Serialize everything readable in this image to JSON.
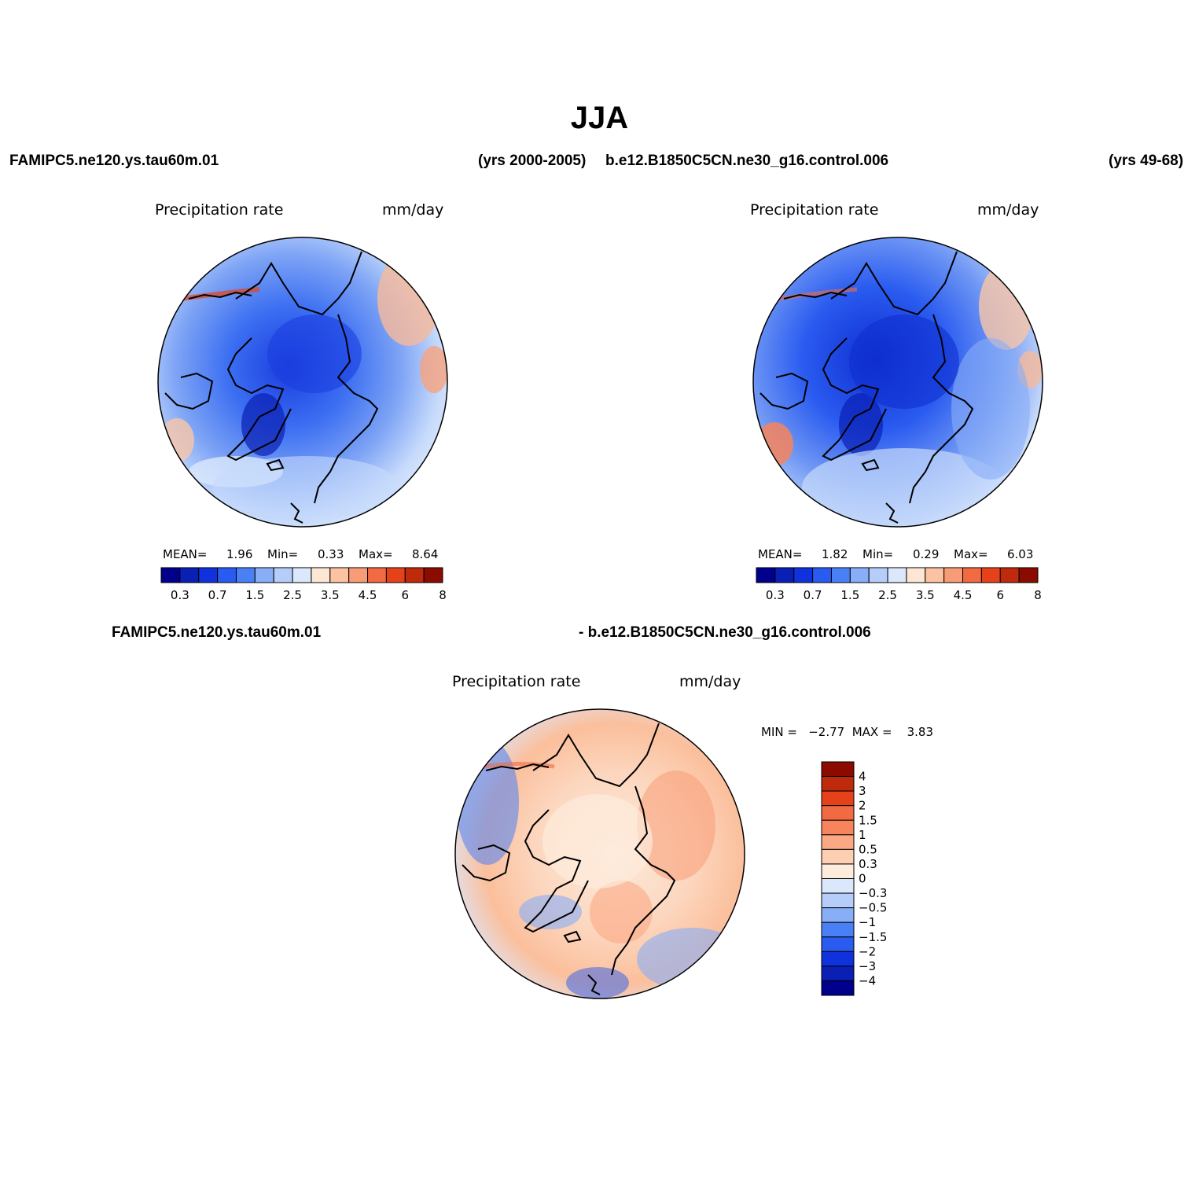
{
  "title": "JJA",
  "top_left_case": {
    "name": "FAMIPC5.ne120.ys.tau60m.01",
    "years": "(yrs 2000-2005)"
  },
  "top_right_case": {
    "name": "b.e12.B1850C5CN.ne30_g16.control.006",
    "years": "(yrs 49-68)"
  },
  "diff_case": {
    "left": "FAMIPC5.ne120.ys.tau60m.01",
    "right": "- b.e12.B1850C5CN.ne30_g16.control.006"
  },
  "panels": [
    {
      "variable": "Precipitation  rate",
      "units": "mm/day",
      "stats": {
        "mean_label": "MEAN=",
        "mean": "1.96",
        "min_label": "Min=",
        "min": "0.33",
        "max_label": "Max=",
        "max": "8.64"
      }
    },
    {
      "variable": "Precipitation  rate",
      "units": "mm/day",
      "stats": {
        "mean_label": "MEAN=",
        "mean": "1.82",
        "min_label": "Min=",
        "min": "0.29",
        "max_label": "Max=",
        "max": "6.03"
      }
    },
    {
      "variable": "Precipitation  rate",
      "units": "mm/day",
      "stats": {
        "text": "MIN =   −2.77  MAX =    3.83"
      }
    }
  ],
  "abs_colorbar": {
    "colors": [
      "#00008c",
      "#0a1fb4",
      "#1032dc",
      "#2a5bf0",
      "#4a80f5",
      "#88aef7",
      "#b6cdfa",
      "#dbe8fc",
      "#fde6d4",
      "#fcc2a2",
      "#f79c76",
      "#f26a42",
      "#e6421a",
      "#bf2a0c",
      "#8b0b00"
    ],
    "labels": [
      "0.3",
      "0.7",
      "1.5",
      "2.5",
      "3.5",
      "4.5",
      "6",
      "8"
    ]
  },
  "diff_colorbar": {
    "colors_top_to_bottom": [
      "#8b0b00",
      "#bf2a0c",
      "#e6421a",
      "#f26a42",
      "#f7845c",
      "#fba884",
      "#fdcfb2",
      "#fdebdc",
      "#dbe8fc",
      "#b6cdfa",
      "#88aef7",
      "#4a80f5",
      "#2a5bf0",
      "#1032dc",
      "#0a1fb4",
      "#00008c"
    ],
    "labels": [
      "4",
      "3",
      "2",
      "1.5",
      "1",
      "0.5",
      "0.3",
      "0",
      "−0.3",
      "−0.5",
      "−1",
      "−1.5",
      "−2",
      "−3",
      "−4"
    ]
  }
}
